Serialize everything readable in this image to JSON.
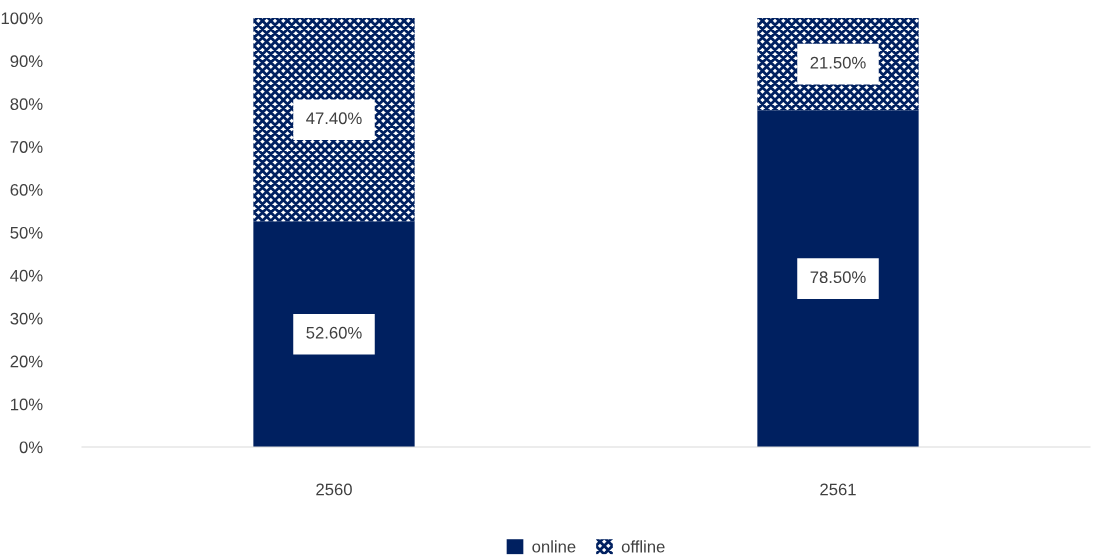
{
  "chart_data": {
    "type": "bar",
    "stacked": true,
    "categories": [
      "2560",
      "2561"
    ],
    "series": [
      {
        "name": "online",
        "color": "#002060",
        "values": [
          52.6,
          78.5
        ],
        "value_labels": [
          "52.60%",
          "78.50%"
        ]
      },
      {
        "name": "offline",
        "color": "#002060",
        "values": [
          47.4,
          21.5
        ],
        "value_labels": [
          "47.40%",
          "21.50%"
        ]
      }
    ],
    "ylim": [
      0,
      100
    ],
    "yticks": [
      {
        "value": 0,
        "label": "0%"
      },
      {
        "value": 10,
        "label": "10%"
      },
      {
        "value": 20,
        "label": "20%"
      },
      {
        "value": 30,
        "label": "30%"
      },
      {
        "value": 40,
        "label": "40%"
      },
      {
        "value": 50,
        "label": "50%"
      },
      {
        "value": 60,
        "label": "60%"
      },
      {
        "value": 70,
        "label": "70%"
      },
      {
        "value": 80,
        "label": "80%"
      },
      {
        "value": 90,
        "label": "90%"
      },
      {
        "value": 100,
        "label": "100%"
      }
    ],
    "grid": false,
    "legend": "bottom"
  }
}
